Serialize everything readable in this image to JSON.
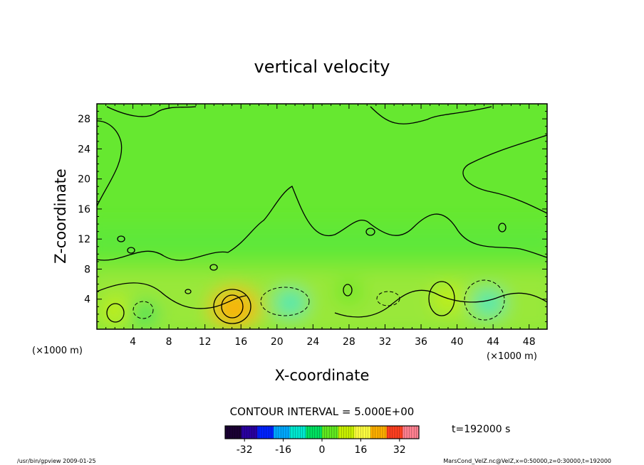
{
  "chart_data": {
    "type": "heatmap",
    "title": "vertical velocity",
    "xlabel": "X-coordinate",
    "ylabel": "Z-coordinate",
    "x_unit": "(×1000 m)",
    "y_unit": "(×1000 m)",
    "xlim": [
      0,
      50
    ],
    "ylim": [
      0,
      30
    ],
    "x_ticks": [
      4,
      8,
      12,
      16,
      20,
      24,
      28,
      32,
      36,
      40,
      44,
      48
    ],
    "y_ticks": [
      4,
      8,
      12,
      16,
      20,
      24,
      28
    ],
    "contour_interval_label": "CONTOUR INTERVAL = 5.000E+00",
    "time_label": "t=192000 s",
    "colorbar": {
      "range": [
        -40,
        40
      ],
      "ticks": [
        -32,
        -16,
        0,
        16,
        32
      ],
      "colors": [
        "#1a0033",
        "#2a00a0",
        "#0022ff",
        "#00a8ff",
        "#00e8d0",
        "#00e060",
        "#60e820",
        "#c8f000",
        "#ffff40",
        "#ffb000",
        "#ff4020",
        "#ff8090"
      ]
    },
    "field_features": [
      {
        "x": 2.2,
        "z": 2.5,
        "value": 8
      },
      {
        "x": 5.2,
        "z": 2.0,
        "value": -6
      },
      {
        "x": 15.3,
        "z": 2.8,
        "value": 22
      },
      {
        "x": 21.5,
        "z": 3.5,
        "value": -7
      },
      {
        "x": 28.0,
        "z": 5.0,
        "value": 4
      },
      {
        "x": 39.0,
        "z": 4.0,
        "value": 9
      },
      {
        "x": 43.5,
        "z": 3.5,
        "value": -7
      }
    ],
    "grid": false,
    "legend": "none"
  },
  "footer": {
    "left": "/usr/bin/gpview   2009-01-25",
    "right": "MarsCond_VelZ.nc@VelZ,x=0:50000,z=0:30000,t=192000"
  }
}
